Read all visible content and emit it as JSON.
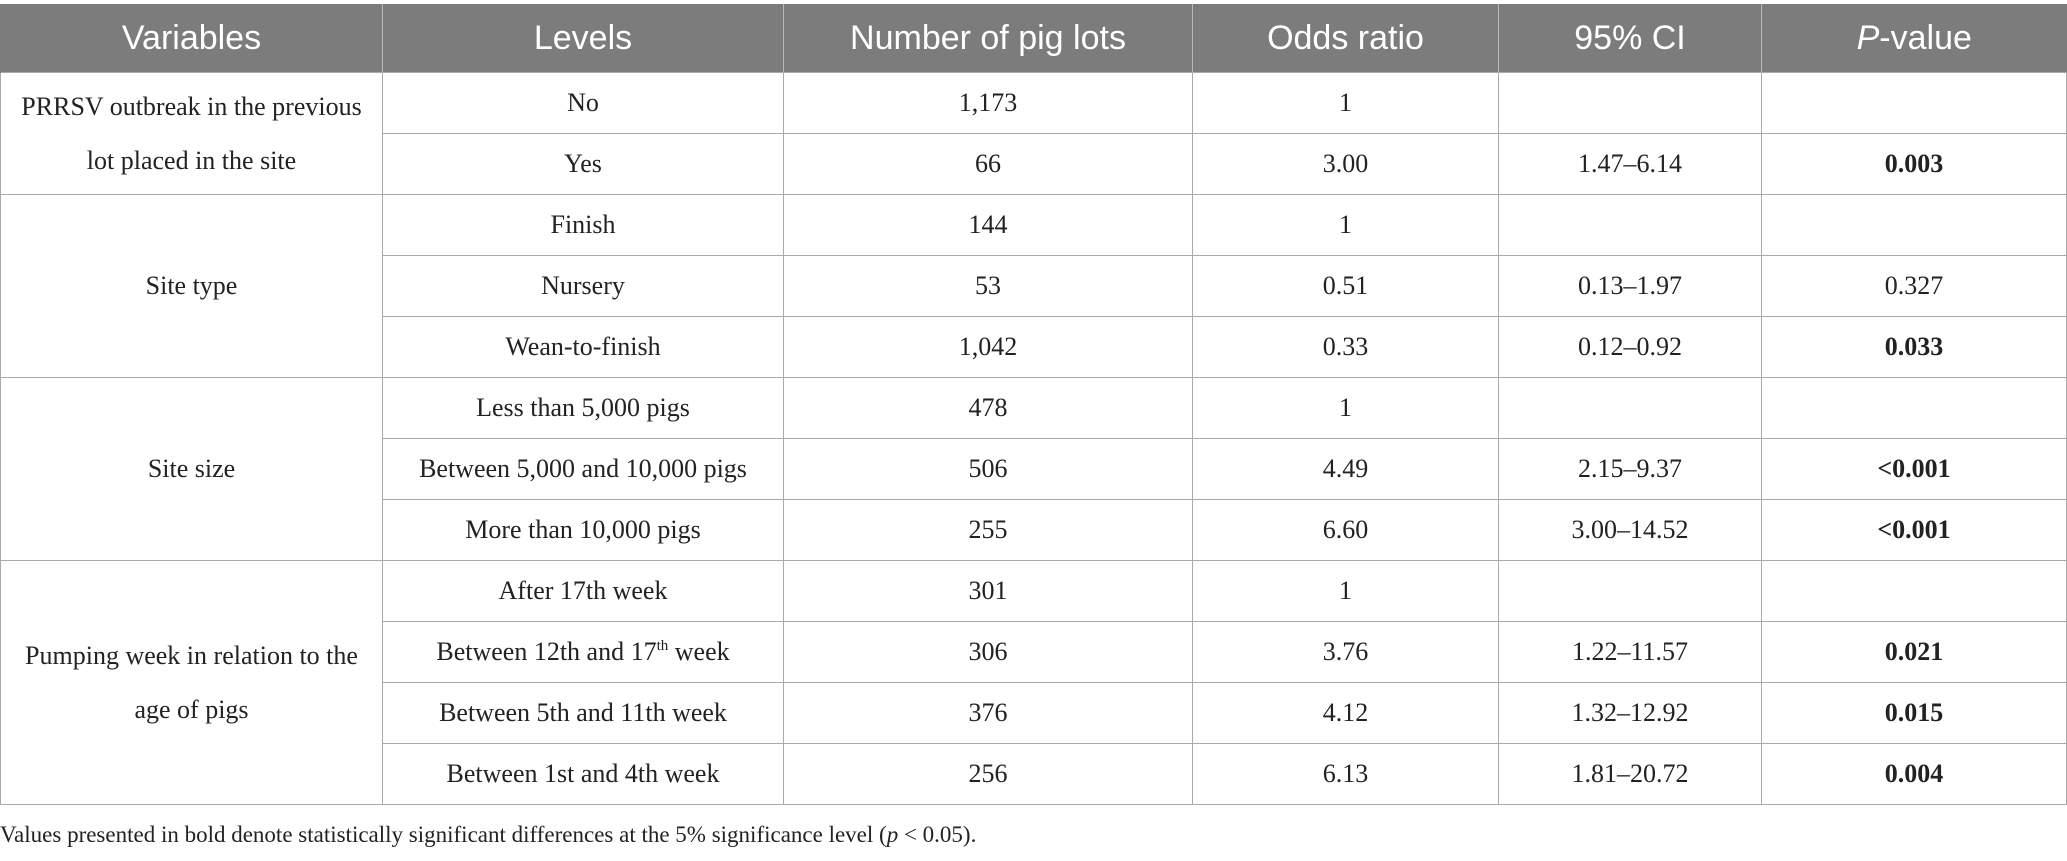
{
  "headers": {
    "variables": "Variables",
    "levels": "Levels",
    "lots": "Number of pig lots",
    "or": "Odds ratio",
    "ci": "95% CI",
    "p_italic": "P",
    "p_rest": "-value"
  },
  "groups": [
    {
      "variable": "PRRSV outbreak in the previous lot placed in the site",
      "rows": [
        {
          "level": "No",
          "lots": "1,173",
          "or": "1",
          "ci": "",
          "p": "",
          "bold": false
        },
        {
          "level": "Yes",
          "lots": "66",
          "or": "3.00",
          "ci": "1.47–6.14",
          "p": "0.003",
          "bold": true
        }
      ]
    },
    {
      "variable": "Site type",
      "rows": [
        {
          "level": "Finish",
          "lots": "144",
          "or": "1",
          "ci": "",
          "p": "",
          "bold": false
        },
        {
          "level": "Nursery",
          "lots": "53",
          "or": "0.51",
          "ci": "0.13–1.97",
          "p": "0.327",
          "bold": false
        },
        {
          "level": "Wean-to-finish",
          "lots": "1,042",
          "or": "0.33",
          "ci": "0.12–0.92",
          "p": "0.033",
          "bold": true
        }
      ]
    },
    {
      "variable": "Site size",
      "rows": [
        {
          "level": "Less than 5,000 pigs",
          "lots": "478",
          "or": "1",
          "ci": "",
          "p": "",
          "bold": false
        },
        {
          "level": "Between 5,000 and 10,000 pigs",
          "lots": "506",
          "or": "4.49",
          "ci": "2.15–9.37",
          "p": "<0.001",
          "bold": true
        },
        {
          "level": "More than 10,000 pigs",
          "lots": "255",
          "or": "6.60",
          "ci": "3.00–14.52",
          "p": "<0.001",
          "bold": true
        }
      ]
    },
    {
      "variable": "Pumping week in relation to the age of pigs",
      "rows": [
        {
          "level": "After 17th week",
          "lots": "301",
          "or": "1",
          "ci": "",
          "p": "",
          "bold": false
        },
        {
          "level_pre": "Between 12th and 17",
          "level_sup": "th",
          "level_post": " week",
          "lots": "306",
          "or": "3.76",
          "ci": "1.22–11.57",
          "p": "0.021",
          "bold": true
        },
        {
          "level": "Between 5th and 11th week",
          "lots": "376",
          "or": "4.12",
          "ci": "1.32–12.92",
          "p": "0.015",
          "bold": true
        },
        {
          "level": "Between 1st and 4th week",
          "lots": "256",
          "or": "6.13",
          "ci": "1.81–20.72",
          "p": "0.004",
          "bold": true
        }
      ]
    }
  ],
  "footnote": {
    "pre": "Values presented in bold denote statistically significant differences at the 5% significance level (",
    "italic": "p",
    "post": " < 0.05)."
  }
}
